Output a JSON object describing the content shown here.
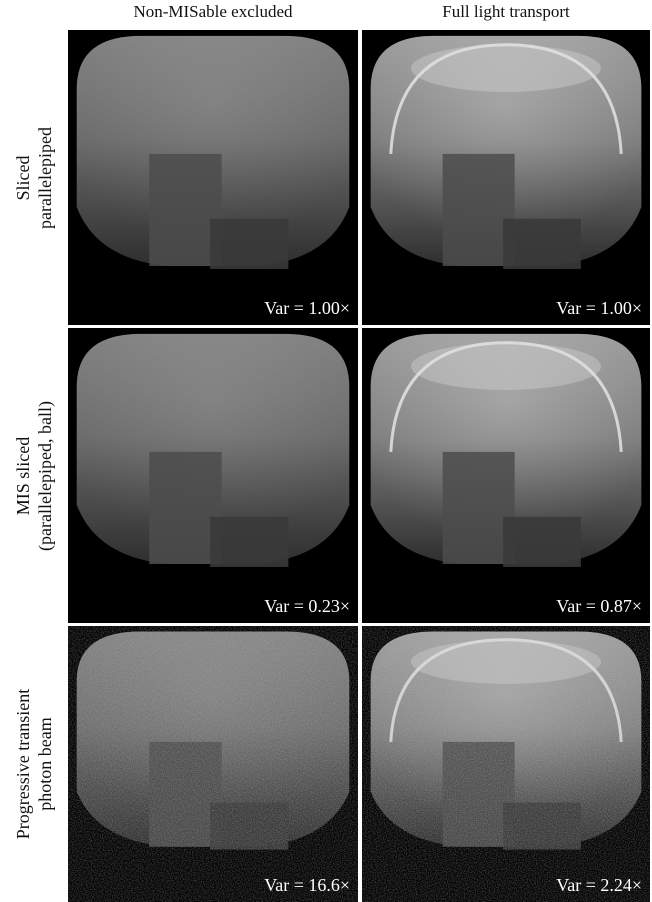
{
  "columns": [
    "Non-MISable excluded",
    "Full light transport"
  ],
  "rows": [
    {
      "label": [
        "Sliced",
        "parallelepiped"
      ],
      "vars": [
        "Var = 1.00×",
        "Var = 1.00×"
      ]
    },
    {
      "label": [
        "MIS sliced",
        "(parallelepiped, ball)"
      ],
      "vars": [
        "Var = 0.23×",
        "Var = 0.87×"
      ]
    },
    {
      "label": [
        "Progressive transient",
        "photon beam"
      ],
      "vars": [
        "Var = 16.6×",
        "Var = 2.24×"
      ]
    }
  ]
}
